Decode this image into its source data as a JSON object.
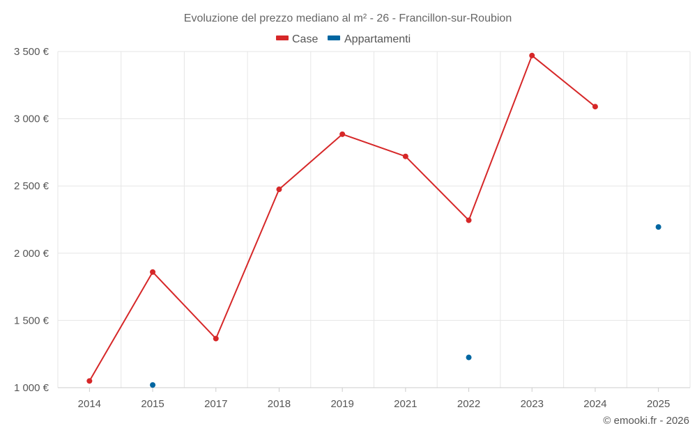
{
  "chart_data": {
    "type": "line",
    "title": "Evoluzione del prezzo mediano al m² - 26 - Francillon-sur-Roubion",
    "categories": [
      "2014",
      "2015",
      "2017",
      "2018",
      "2019",
      "2021",
      "2022",
      "2023",
      "2024",
      "2025"
    ],
    "ylim": [
      1000,
      3500
    ],
    "yticks": [
      1000,
      1500,
      2000,
      2500,
      3000,
      3500
    ],
    "ytick_labels": [
      "1 000 €",
      "1 500 €",
      "2 000 €",
      "2 500 €",
      "3 000 €",
      "3 500 €"
    ],
    "grid": true,
    "legend_position": "top-center",
    "series": [
      {
        "name": "Case",
        "color": "#d62728",
        "values": [
          1050,
          1860,
          1365,
          2475,
          2885,
          2720,
          2245,
          3470,
          3090,
          null
        ]
      },
      {
        "name": "Appartamenti",
        "color": "#0066a1",
        "values": [
          null,
          1020,
          null,
          null,
          null,
          null,
          1225,
          null,
          null,
          2195
        ]
      }
    ]
  },
  "credit": "© emooki.fr - 2026"
}
